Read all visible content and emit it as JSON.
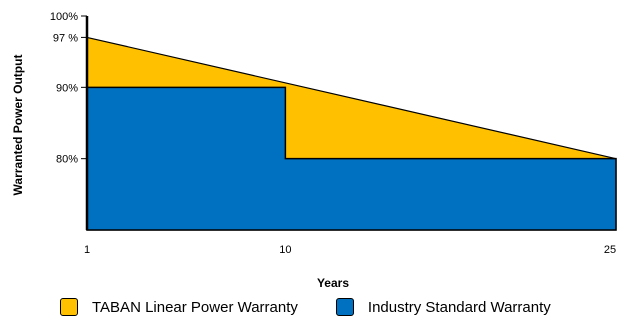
{
  "chart_data": {
    "type": "area",
    "title": "",
    "xlabel": "Years",
    "ylabel": "Warranted Power Output",
    "x_ticks": [
      "1",
      "10",
      "25"
    ],
    "y_ticks": [
      "100%",
      "97 %",
      "90%",
      "80%"
    ],
    "y_tick_values": [
      100,
      97,
      90,
      80
    ],
    "xlim": [
      1,
      25
    ],
    "ylim": [
      70,
      100
    ],
    "grid": false,
    "legend_position": "bottom",
    "series": [
      {
        "name": "TABAN Linear Power Warranty",
        "color": "#FFC000",
        "x": [
          1,
          25
        ],
        "y": [
          97,
          80
        ]
      },
      {
        "name": "Industry Standard Warranty",
        "color": "#0070C0",
        "x": [
          1,
          10,
          10,
          25
        ],
        "y": [
          90,
          90,
          80,
          80
        ]
      }
    ]
  }
}
